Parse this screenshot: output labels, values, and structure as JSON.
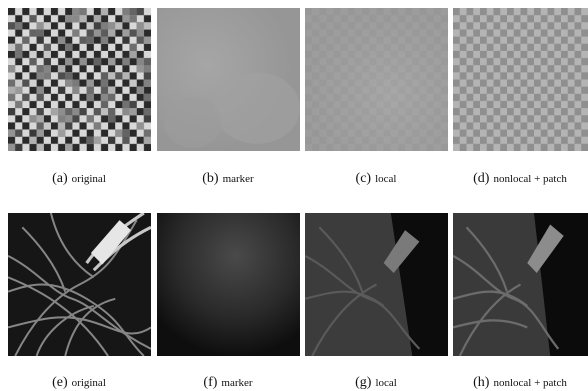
{
  "row1": {
    "captions": [
      {
        "label": "(a)",
        "text": "original"
      },
      {
        "label": "(b)",
        "text": "marker"
      },
      {
        "label": "(c)",
        "text": "local"
      },
      {
        "label": "(d)",
        "text": "nonlocal + patch"
      }
    ],
    "image_names": [
      "checkerboard-noisy-image",
      "checkerboard-marker-image",
      "checkerboard-local-image",
      "checkerboard-nonlocal-patch-image"
    ]
  },
  "row2": {
    "captions": [
      {
        "label": "(e)",
        "text": "original"
      },
      {
        "label": "(f)",
        "text": "marker"
      },
      {
        "label": "(g)",
        "text": "local"
      },
      {
        "label": "(h)",
        "text": "nonlocal + patch"
      }
    ],
    "image_names": [
      "fibers-original-image",
      "fibers-marker-image",
      "fibers-local-image",
      "fibers-nonlocal-patch-image"
    ]
  },
  "colors": {
    "background": "#ffffff",
    "gray_mid": "#9a9a9a",
    "dark": "#0d0d0d"
  }
}
